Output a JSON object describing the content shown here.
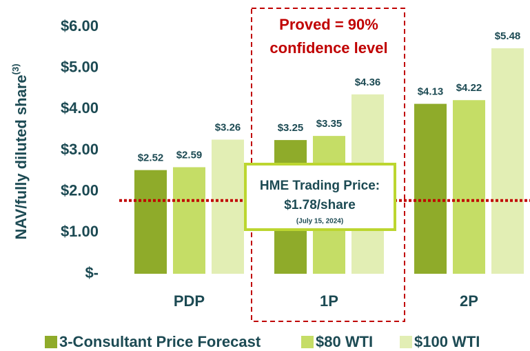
{
  "chart_data": {
    "type": "bar",
    "ylabel": "NAV/fully diluted share",
    "ylabel_sup": "(3)",
    "categories": [
      "PDP",
      "1P",
      "2P"
    ],
    "series": [
      {
        "name": "3-Consultant Price Forecast",
        "color": "#8fab2a",
        "values": [
          2.52,
          3.25,
          4.13
        ],
        "value_labels": [
          "$2.52",
          "$3.25",
          "$4.13"
        ]
      },
      {
        "name": "$80 WTI",
        "color": "#c5dd66",
        "values": [
          2.59,
          3.35,
          4.22
        ],
        "value_labels": [
          "$2.59",
          "$3.35",
          "$4.22"
        ]
      },
      {
        "name": "$100 WTI",
        "color": "#e2eeb4",
        "values": [
          3.26,
          4.36,
          5.48
        ],
        "value_labels": [
          "$3.26",
          "$4.36",
          "$5.48"
        ]
      }
    ],
    "ylim": [
      0,
      6
    ],
    "yticks": [
      {
        "value": 0,
        "label": "$-"
      },
      {
        "value": 1,
        "label": "$1.00"
      },
      {
        "value": 2,
        "label": "$2.00"
      },
      {
        "value": 3,
        "label": "$3.00"
      },
      {
        "value": 4,
        "label": "$4.00"
      },
      {
        "value": 5,
        "label": "$5.00"
      },
      {
        "value": 6,
        "label": "$6.00"
      }
    ],
    "reference_line": {
      "value": 1.78,
      "color": "#c00000",
      "title": "HME Trading Price:",
      "label": "$1.78/share",
      "note": "(July 15, 2024)"
    },
    "annotation": [
      "Proved = 90%",
      "confidence level"
    ],
    "legend": "bottom"
  }
}
